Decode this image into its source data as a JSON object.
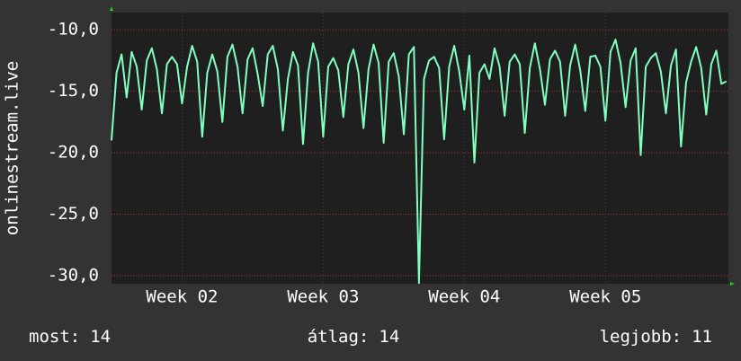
{
  "chart_data": {
    "type": "line",
    "y_label": "onlinestream.live",
    "x": [
      0,
      0.25,
      0.5,
      0.75,
      1,
      1.25,
      1.5,
      1.75,
      2,
      2.25,
      2.5,
      2.75,
      3,
      3.25,
      3.5,
      3.75,
      4,
      4.25,
      4.5,
      4.75,
      5,
      5.25,
      5.5,
      5.75,
      6,
      6.25,
      6.5,
      6.75,
      7,
      7.25,
      7.5,
      7.75,
      8,
      8.25,
      8.5,
      8.75,
      9,
      9.25,
      9.5,
      9.75,
      10,
      10.25,
      10.5,
      10.75,
      11,
      11.25,
      11.5,
      11.75,
      12,
      12.25,
      12.5,
      12.75,
      13,
      13.25,
      13.5,
      13.75,
      14,
      14.25,
      14.5,
      14.75,
      15,
      15.25,
      15.5,
      15.75,
      16,
      16.25,
      16.5,
      16.75,
      17,
      17.25,
      17.5,
      17.75,
      18,
      18.25,
      18.5,
      18.75,
      19,
      19.25,
      19.5,
      19.75,
      20,
      20.25,
      20.5,
      20.75,
      21,
      21.25,
      21.5,
      21.75,
      22,
      22.25,
      22.5,
      22.75,
      23,
      23.25,
      23.5,
      23.75,
      24,
      24.25,
      24.5,
      24.75,
      25,
      25.25,
      25.5,
      25.75,
      26,
      26.25,
      26.5,
      26.75,
      27,
      27.25,
      27.5,
      27.75,
      28,
      28.25,
      28.5,
      28.75,
      29,
      29.25,
      29.5,
      29.75,
      30,
      30.25,
      30.5
    ],
    "series": [
      {
        "name": "onlinestream.live",
        "color": "#80ffc0",
        "values": [
          -19,
          -13.5,
          -12,
          -15.5,
          -11.8,
          -13,
          -16.5,
          -12.5,
          -11.5,
          -13.2,
          -16.8,
          -12.8,
          -12.2,
          -12.8,
          -16,
          -13,
          -11.3,
          -12.6,
          -18.7,
          -13.5,
          -12,
          -13.4,
          -17.5,
          -12.2,
          -11.2,
          -13,
          -16.8,
          -12.4,
          -11.5,
          -13.6,
          -16.2,
          -12,
          -11.3,
          -13.2,
          -18.2,
          -14,
          -11.8,
          -12.9,
          -19.3,
          -13.5,
          -11.1,
          -12.6,
          -18.7,
          -13,
          -12.3,
          -13.3,
          -17.1,
          -12.8,
          -11.6,
          -13.5,
          -18,
          -13.2,
          -11.2,
          -12.7,
          -19.2,
          -12.6,
          -11.9,
          -13.8,
          -18.5,
          -12,
          -11.4,
          -30.6,
          -14,
          -12.5,
          -12.2,
          -13.1,
          -18.9,
          -13,
          -11.3,
          -13.4,
          -16.5,
          -12.1,
          -20.8,
          -13.5,
          -12.8,
          -14,
          -11.5,
          -13,
          -17,
          -12.6,
          -12,
          -12.8,
          -18.4,
          -13.1,
          -11.1,
          -13.2,
          -16.1,
          -12.4,
          -11.7,
          -12.6,
          -17,
          -12.9,
          -11.2,
          -13.3,
          -16.6,
          -12.2,
          -12.1,
          -13,
          -17.4,
          -11.8,
          -10.8,
          -12.7,
          -16.3,
          -12.5,
          -11.5,
          -20.2,
          -13,
          -12.3,
          -11.9,
          -13.4,
          -16.8,
          -12.9,
          -11.6,
          -19.5,
          -14.3,
          -12.6,
          -11.4,
          -13.1,
          -16.9,
          -12.8,
          -11.7,
          -14.4,
          -14.2
        ]
      }
    ],
    "xlim": [
      0,
      30.6
    ],
    "xticks": [
      {
        "value": 3.5,
        "label": "Week 02"
      },
      {
        "value": 10.5,
        "label": "Week 03"
      },
      {
        "value": 17.5,
        "label": "Week 04"
      },
      {
        "value": 24.5,
        "label": "Week 05"
      }
    ],
    "ylim": [
      -30.66,
      -8.6
    ],
    "yticks": [
      {
        "value": -30,
        "label": "-30,0"
      },
      {
        "value": -25,
        "label": "-25,0"
      },
      {
        "value": -20,
        "label": "-20,0"
      },
      {
        "value": -15,
        "label": "-15,0"
      },
      {
        "value": -10,
        "label": "-10,0"
      }
    ],
    "grid": true,
    "stats": [
      {
        "label": "most:",
        "value": 14
      },
      {
        "label": "átlag:",
        "value": 14
      },
      {
        "label": "legjobb:",
        "value": 11
      }
    ]
  }
}
